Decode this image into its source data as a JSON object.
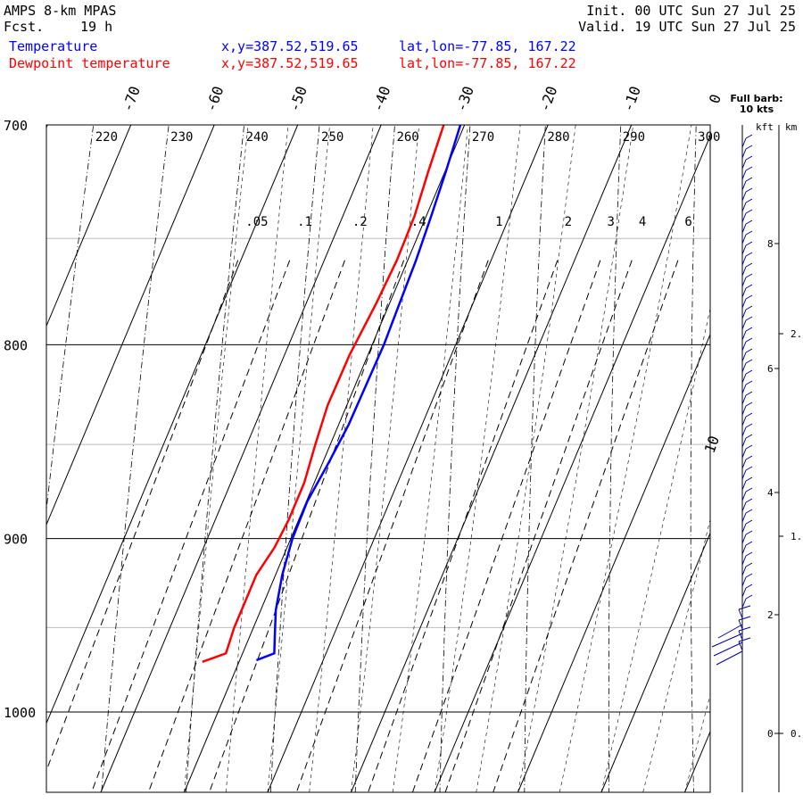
{
  "header": {
    "title": "AMPS 8-km MPAS",
    "fcst_label": "Fcst.",
    "fcst_value": "19 h",
    "init": "Init. 00 UTC Sun 27 Jul 25",
    "valid": "Valid. 19 UTC Sun 27 Jul 25"
  },
  "legend": [
    {
      "name": "Temperature",
      "xy": "x,y=387.52,519.65",
      "latlon": "lat,lon=-77.85, 167.22",
      "color": "#0000ff"
    },
    {
      "name": "Dewpoint temperature",
      "xy": "x,y=387.52,519.65",
      "latlon": "lat,lon=-77.85, 167.22",
      "color": "#ff0000"
    }
  ],
  "barb_header": {
    "line1": "Full barb:",
    "line2": "10 kts",
    "kft": "kft",
    "km": "km"
  },
  "chart_data": {
    "type": "line",
    "chart_kind": "skew-T log-P diagram",
    "y_axis": {
      "scale": "log",
      "ylim": [
        1040,
        700
      ],
      "ticks": [
        "700",
        "800",
        "900",
        "1000"
      ]
    },
    "temperature_ticks": [
      "-70",
      "-60",
      "-50",
      "-40",
      "-30",
      "-20",
      "-10",
      "0",
      "10"
    ],
    "dry_adiabat_labels": [
      "220",
      "230",
      "240",
      "250",
      "260",
      "270",
      "280",
      "290",
      "300"
    ],
    "mixing_ratio_labels": [
      ".05",
      ".1",
      ".2",
      ".4",
      "1",
      "2",
      "3",
      "4",
      "6"
    ],
    "series": [
      {
        "name": "Temperature",
        "color": "#0000ff",
        "points": [
          [
            969,
            -28.0
          ],
          [
            965,
            -26.2
          ],
          [
            955,
            -27.0
          ],
          [
            940,
            -28.2
          ],
          [
            920,
            -29.2
          ],
          [
            900,
            -29.8
          ],
          [
            880,
            -29.9
          ],
          [
            860,
            -29.3
          ],
          [
            840,
            -28.8
          ],
          [
            820,
            -28.7
          ],
          [
            800,
            -28.6
          ],
          [
            780,
            -28.8
          ],
          [
            760,
            -29.0
          ],
          [
            740,
            -29.4
          ],
          [
            720,
            -29.9
          ],
          [
            700,
            -30.5
          ]
        ]
      },
      {
        "name": "Dewpoint temperature",
        "color": "#ff0000",
        "points": [
          [
            970,
            -34.4
          ],
          [
            965,
            -32.0
          ],
          [
            950,
            -32.3
          ],
          [
            935,
            -32.3
          ],
          [
            920,
            -32.3
          ],
          [
            905,
            -31.5
          ],
          [
            890,
            -31.2
          ],
          [
            870,
            -31.2
          ],
          [
            850,
            -31.8
          ],
          [
            830,
            -32.3
          ],
          [
            805,
            -32.2
          ],
          [
            780,
            -31.6
          ],
          [
            760,
            -31.3
          ],
          [
            740,
            -31.4
          ],
          [
            720,
            -32.0
          ],
          [
            700,
            -32.5
          ]
        ]
      }
    ],
    "kft_ticks": [
      "0",
      "2",
      "4",
      "6",
      "8"
    ],
    "km_ticks": [
      "0.",
      "1.",
      "2."
    ],
    "grid": true
  }
}
